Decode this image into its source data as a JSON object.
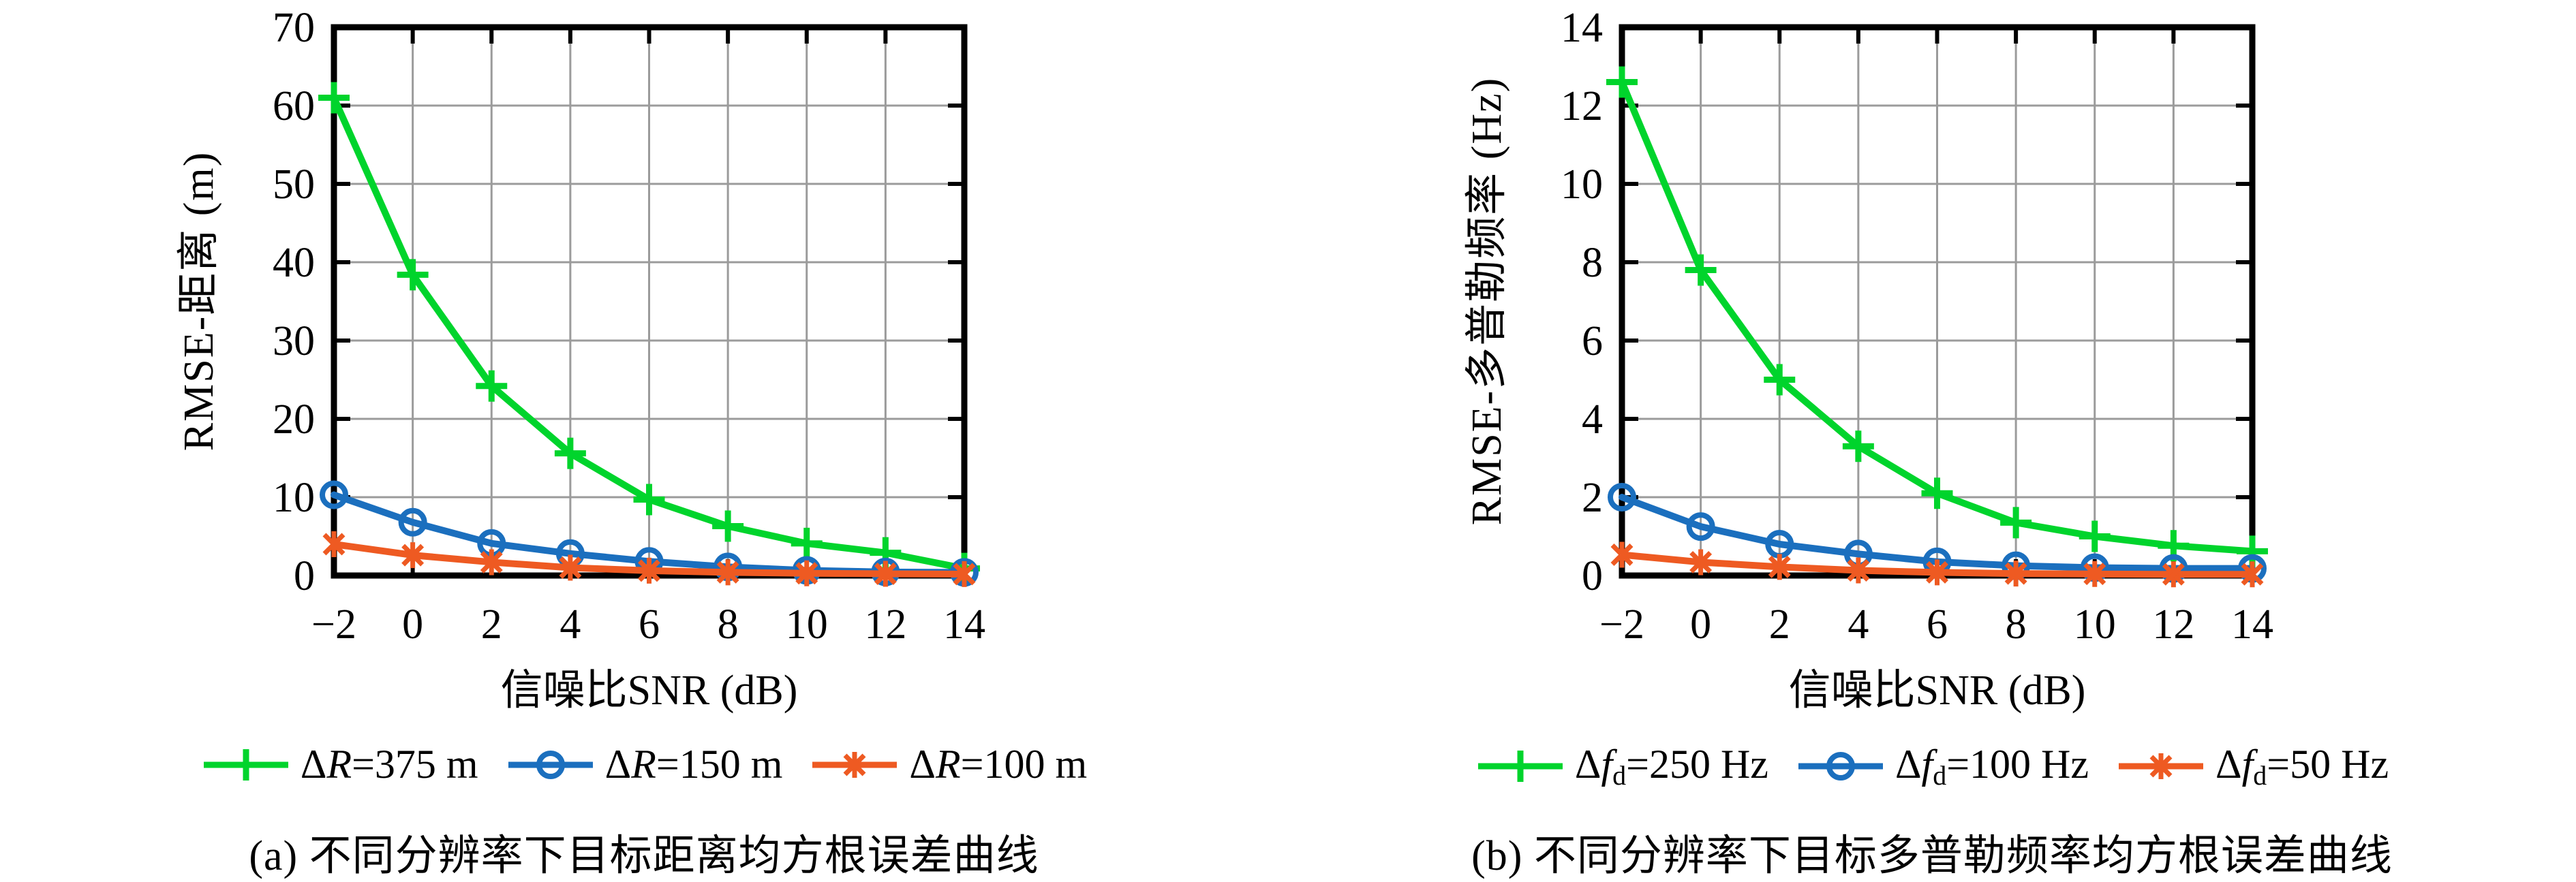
{
  "figure": {
    "background": "#ffffff",
    "text_color": "#000000",
    "grid_color": "#9b9b9b",
    "axis_color": "#000000"
  },
  "chart_data": [
    {
      "type": "line",
      "panel": "a",
      "caption": "(a) 不同分辨率下目标距离均方根误差曲线",
      "xlabel": "信噪比SNR (dB)",
      "ylabel": "RMSE-距离 (m)",
      "x": [
        -2,
        0,
        2,
        4,
        6,
        8,
        10,
        12,
        14
      ],
      "xtick_labels": [
        "−2",
        "0",
        "2",
        "4",
        "6",
        "8",
        "10",
        "12",
        "14"
      ],
      "xlim": [
        -2,
        14
      ],
      "ylim": [
        0,
        70
      ],
      "yticks": [
        0,
        10,
        20,
        30,
        40,
        50,
        60,
        70
      ],
      "grid": true,
      "legend_position": "below",
      "series": [
        {
          "name": "ΔR=375 m",
          "label_parts": {
            "pre": "Δ",
            "sym": "R",
            "sub": "",
            "rest": "=375 m"
          },
          "color": "#00d42c",
          "marker": "plus",
          "values": [
            61,
            38.4,
            24.2,
            15.6,
            9.7,
            6.3,
            4.1,
            2.9,
            0.9
          ]
        },
        {
          "name": "ΔR=150 m",
          "label_parts": {
            "pre": "Δ",
            "sym": "R",
            "sub": "",
            "rest": "=150 m"
          },
          "color": "#1b6fbe",
          "marker": "circle",
          "values": [
            10.3,
            6.8,
            4.1,
            2.8,
            1.8,
            1.1,
            0.65,
            0.45,
            0.4
          ]
        },
        {
          "name": "ΔR=100 m",
          "label_parts": {
            "pre": "Δ",
            "sym": "R",
            "sub": "",
            "rest": "=100 m"
          },
          "color": "#ee5a22",
          "marker": "asterisk",
          "values": [
            4.0,
            2.6,
            1.7,
            1.0,
            0.62,
            0.4,
            0.28,
            0.22,
            0.18
          ]
        }
      ]
    },
    {
      "type": "line",
      "panel": "b",
      "caption": "(b) 不同分辨率下目标多普勒频率均方根误差曲线",
      "xlabel": "信噪比SNR (dB)",
      "ylabel": "RMSE-多普勒频率 (Hz)",
      "x": [
        -2,
        0,
        2,
        4,
        6,
        8,
        10,
        12,
        14
      ],
      "xtick_labels": [
        "−2",
        "0",
        "2",
        "4",
        "6",
        "8",
        "10",
        "12",
        "14"
      ],
      "xlim": [
        -2,
        14
      ],
      "ylim": [
        0,
        14
      ],
      "yticks": [
        0,
        2,
        4,
        6,
        8,
        10,
        12,
        14
      ],
      "grid": true,
      "legend_position": "below",
      "series": [
        {
          "name": "Δf_d=250 Hz",
          "label_parts": {
            "pre": "Δ",
            "sym": "f",
            "sub": "d",
            "rest": "=250 Hz"
          },
          "color": "#00d42c",
          "marker": "plus",
          "values": [
            12.6,
            7.8,
            5.0,
            3.3,
            2.1,
            1.35,
            1.0,
            0.76,
            0.62
          ]
        },
        {
          "name": "Δf_d=100 Hz",
          "label_parts": {
            "pre": "Δ",
            "sym": "f",
            "sub": "d",
            "rest": "=100 Hz"
          },
          "color": "#1b6fbe",
          "marker": "circle",
          "values": [
            2.0,
            1.25,
            0.8,
            0.55,
            0.35,
            0.25,
            0.2,
            0.18,
            0.18
          ]
        },
        {
          "name": "Δf_d=50 Hz",
          "label_parts": {
            "pre": "Δ",
            "sym": "f",
            "sub": "d",
            "rest": "=50 Hz"
          },
          "color": "#ee5a22",
          "marker": "asterisk",
          "values": [
            0.53,
            0.34,
            0.22,
            0.13,
            0.08,
            0.05,
            0.04,
            0.03,
            0.03
          ]
        }
      ]
    }
  ]
}
